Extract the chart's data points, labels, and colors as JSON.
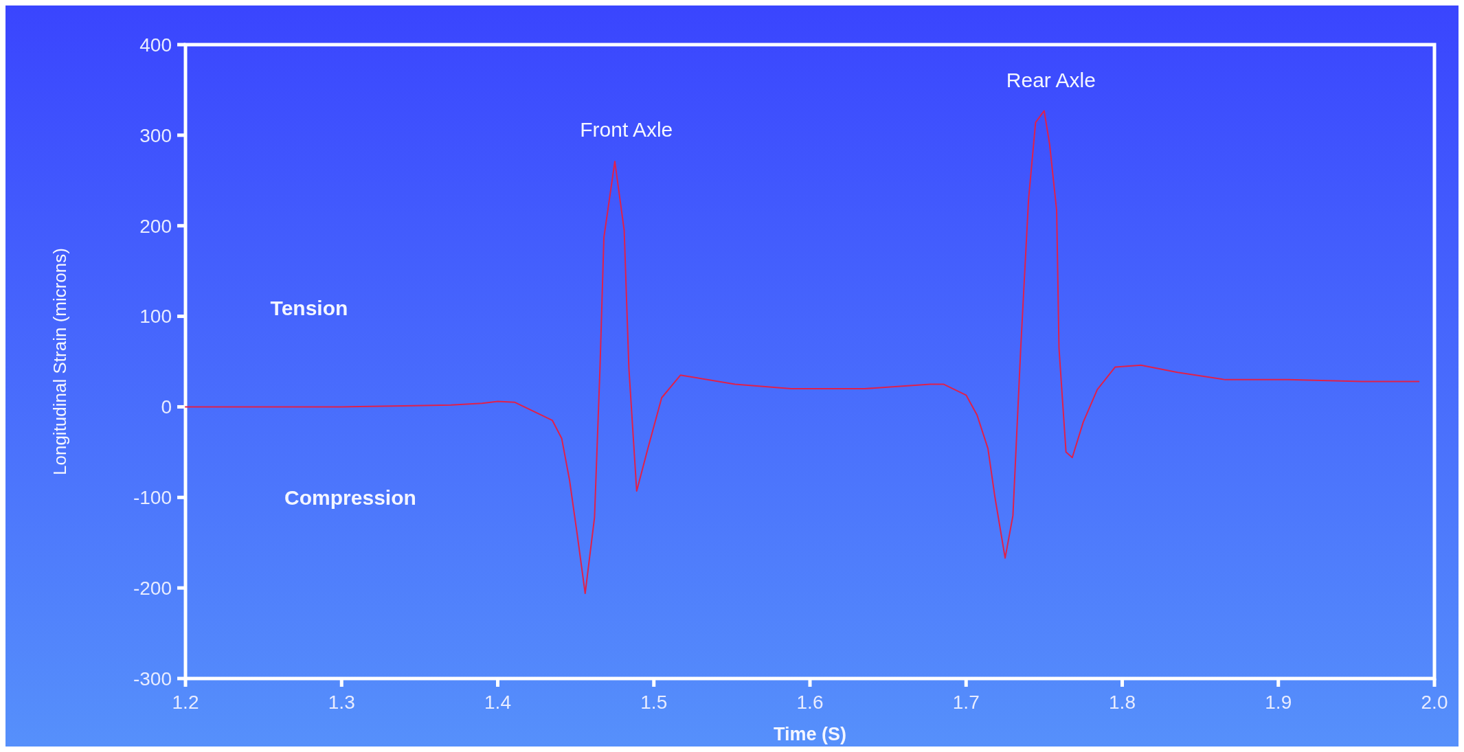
{
  "chart_data": {
    "type": "line",
    "xlabel": "Time (S)",
    "ylabel": "Longitudinal Strain (microns)",
    "xlim": [
      1.2,
      2.0
    ],
    "xticks": [
      1.2,
      1.3,
      1.4,
      1.5,
      1.6,
      1.7,
      1.8,
      1.9,
      {
        "value": 2.0,
        "label": "2.0"
      }
    ],
    "ylim": [
      -300,
      400
    ],
    "yticks": [
      -300,
      -200,
      -100,
      0,
      100,
      200,
      300,
      400
    ],
    "grid": false,
    "marker": "none",
    "line_style": "solid",
    "annotations": [
      "Front Axle",
      "Rear Axle",
      "Tension",
      "Compression"
    ],
    "series": [
      {
        "color": "#e0204a",
        "x": [
          1.2,
          1.25,
          1.3,
          1.34,
          1.37,
          1.39,
          1.4,
          1.411,
          1.435,
          1.441,
          1.446,
          1.451,
          1.456,
          1.462,
          1.4655,
          1.468,
          1.475,
          1.481,
          1.484,
          1.489,
          1.496,
          1.505,
          1.517,
          1.552,
          1.588,
          1.635,
          1.677,
          1.6855,
          1.7,
          1.707,
          1.714,
          1.7185,
          1.725,
          1.73,
          1.735,
          1.74,
          1.7445,
          1.75,
          1.7535,
          1.758,
          1.7595,
          1.764,
          1.768,
          1.775,
          1.784,
          1.7955,
          1.812,
          1.8355,
          1.866,
          1.906,
          1.9535,
          1.99
        ],
        "values": [
          0,
          0,
          0,
          1,
          2,
          4,
          6,
          5,
          -15,
          -35,
          -81,
          -142,
          -206,
          -122,
          43,
          187,
          271,
          195,
          43,
          -93,
          -47,
          10,
          35,
          25,
          20,
          20,
          25,
          25,
          13,
          -9,
          -46,
          -100,
          -167,
          -120,
          65,
          229,
          314,
          327,
          290,
          217,
          65,
          -50,
          -56,
          -17,
          19,
          44,
          46,
          38,
          30,
          30,
          28,
          28
        ]
      }
    ]
  }
}
